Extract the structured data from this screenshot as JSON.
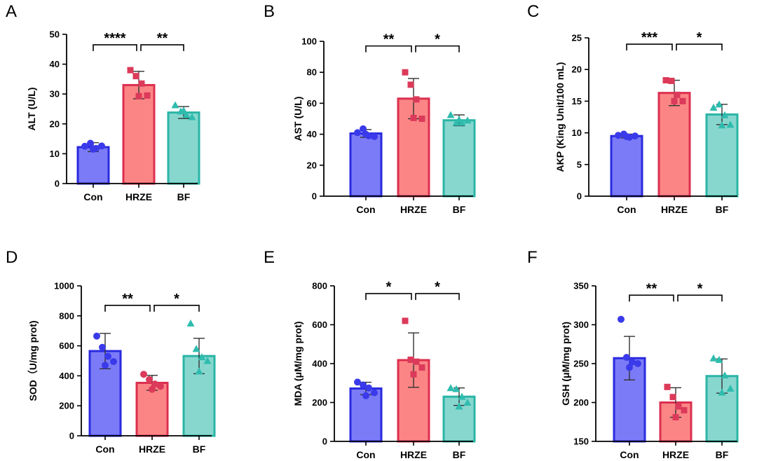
{
  "colors": {
    "Con": {
      "fill": "#7b7bf7",
      "stroke": "#2a2ae0",
      "point": "#3a3aea"
    },
    "HRZE": {
      "fill": "#fb8585",
      "stroke": "#dc2f4f",
      "point": "#dc3a5a"
    },
    "BF": {
      "fill": "#88d7cf",
      "stroke": "#2ab5a6",
      "point": "#2fbcae"
    }
  },
  "chart_data": [
    {
      "panel": "A",
      "type": "bar",
      "ylabel": "ALT (U/L)",
      "ylim": [
        0,
        50
      ],
      "yticks": [
        0,
        10,
        20,
        30,
        40,
        50
      ],
      "categories": [
        "Con",
        "HRZE",
        "BF"
      ],
      "values": [
        12.2,
        33.0,
        23.8
      ],
      "errors": [
        1.5,
        4.6,
        2.0
      ],
      "marker_shapes": [
        "circle",
        "square",
        "triangle"
      ],
      "points": [
        [
          12.5,
          13.5,
          11.8,
          12.6,
          11.5
        ],
        [
          38.0,
          36.0,
          33.5,
          29.5,
          29.3
        ],
        [
          26.3,
          24.2,
          23.0,
          22.3,
          24.5
        ]
      ],
      "comparisons": [
        {
          "from": 0,
          "to": 1,
          "label": "****",
          "y": 46.5
        },
        {
          "from": 1,
          "to": 2,
          "label": "**",
          "y": 46.5
        }
      ]
    },
    {
      "panel": "B",
      "type": "bar",
      "ylabel": "AST (U/L)",
      "ylim": [
        0,
        100
      ],
      "yticks": [
        0,
        20,
        40,
        60,
        80,
        100
      ],
      "categories": [
        "Con",
        "HRZE",
        "BF"
      ],
      "values": [
        40.5,
        63.0,
        49.0
      ],
      "errors": [
        2.5,
        13.0,
        3.5
      ],
      "marker_shapes": [
        "circle",
        "square",
        "triangle"
      ],
      "points": [
        [
          41.0,
          43.5,
          39.0,
          38.5,
          40.0
        ],
        [
          80.0,
          72.0,
          62.5,
          50.0,
          50.5
        ],
        [
          52.5,
          47.5,
          47.5,
          49.0,
          49.5
        ]
      ],
      "comparisons": [
        {
          "from": 0,
          "to": 1,
          "label": "**",
          "y": 97
        },
        {
          "from": 1,
          "to": 2,
          "label": "*",
          "y": 97
        }
      ]
    },
    {
      "panel": "C",
      "type": "bar",
      "ylabel": "AKP (King Unit/100 mL)",
      "ylim": [
        0,
        25
      ],
      "yticks": [
        0,
        5,
        10,
        15,
        20,
        25
      ],
      "categories": [
        "Con",
        "HRZE",
        "BF"
      ],
      "values": [
        9.5,
        16.3,
        12.9
      ],
      "errors": [
        0.3,
        2.0,
        1.6
      ],
      "marker_shapes": [
        "circle",
        "square",
        "triangle"
      ],
      "points": [
        [
          9.6,
          9.8,
          9.3,
          9.5,
          9.4
        ],
        [
          18.3,
          18.2,
          16.0,
          15.0,
          15.0
        ],
        [
          14.0,
          14.5,
          12.8,
          11.3,
          11.2
        ]
      ],
      "comparisons": [
        {
          "from": 0,
          "to": 1,
          "label": "***",
          "y": 24
        },
        {
          "from": 1,
          "to": 2,
          "label": "*",
          "y": 24
        }
      ]
    },
    {
      "panel": "D",
      "type": "bar",
      "ylabel": "SOD（U/mg prot)",
      "ylim": [
        0,
        1000
      ],
      "yticks": [
        0,
        200,
        400,
        600,
        800,
        1000
      ],
      "categories": [
        "Con",
        "HRZE",
        "BF"
      ],
      "values": [
        565,
        353,
        532
      ],
      "errors": [
        118,
        50,
        118
      ],
      "marker_shapes": [
        "circle",
        "circle",
        "triangle"
      ],
      "points": [
        [
          665,
          590,
          530,
          495,
          470
        ],
        [
          410,
          375,
          345,
          330,
          310
        ],
        [
          750,
          580,
          525,
          500,
          430
        ]
      ],
      "comparisons": [
        {
          "from": 0,
          "to": 1,
          "label": "**",
          "y": 870
        },
        {
          "from": 1,
          "to": 2,
          "label": "*",
          "y": 870
        }
      ]
    },
    {
      "panel": "E",
      "type": "bar",
      "ylabel": "MDA (μM/mg prot)",
      "ylim": [
        0,
        800
      ],
      "yticks": [
        0,
        200,
        400,
        600,
        800
      ],
      "categories": [
        "Con",
        "HRZE",
        "BF"
      ],
      "values": [
        272,
        418,
        230
      ],
      "errors": [
        32,
        140,
        45
      ],
      "marker_shapes": [
        "circle",
        "square",
        "triangle"
      ],
      "points": [
        [
          305,
          290,
          275,
          250,
          235
        ],
        [
          620,
          420,
          410,
          380,
          345
        ],
        [
          275,
          270,
          230,
          200,
          180
        ]
      ],
      "comparisons": [
        {
          "from": 0,
          "to": 1,
          "label": "*",
          "y": 760
        },
        {
          "from": 1,
          "to": 2,
          "label": "*",
          "y": 760
        }
      ]
    },
    {
      "panel": "F",
      "type": "bar",
      "ylabel": "GSH (μM/mg prot)",
      "ylim": [
        150,
        350
      ],
      "yticks": [
        150,
        200,
        250,
        300,
        350
      ],
      "categories": [
        "Con",
        "HRZE",
        "BF"
      ],
      "values": [
        257,
        200,
        234
      ],
      "errors": [
        28,
        19,
        22
      ],
      "marker_shapes": [
        "circle",
        "square",
        "triangle"
      ],
      "points": [
        [
          307,
          258,
          252,
          250,
          245
        ],
        [
          220,
          207,
          195,
          190,
          181
        ],
        [
          257,
          255,
          235,
          218,
          213
        ]
      ],
      "comparisons": [
        {
          "from": 0,
          "to": 1,
          "label": "**",
          "y": 338
        },
        {
          "from": 1,
          "to": 2,
          "label": "*",
          "y": 338
        }
      ]
    }
  ]
}
